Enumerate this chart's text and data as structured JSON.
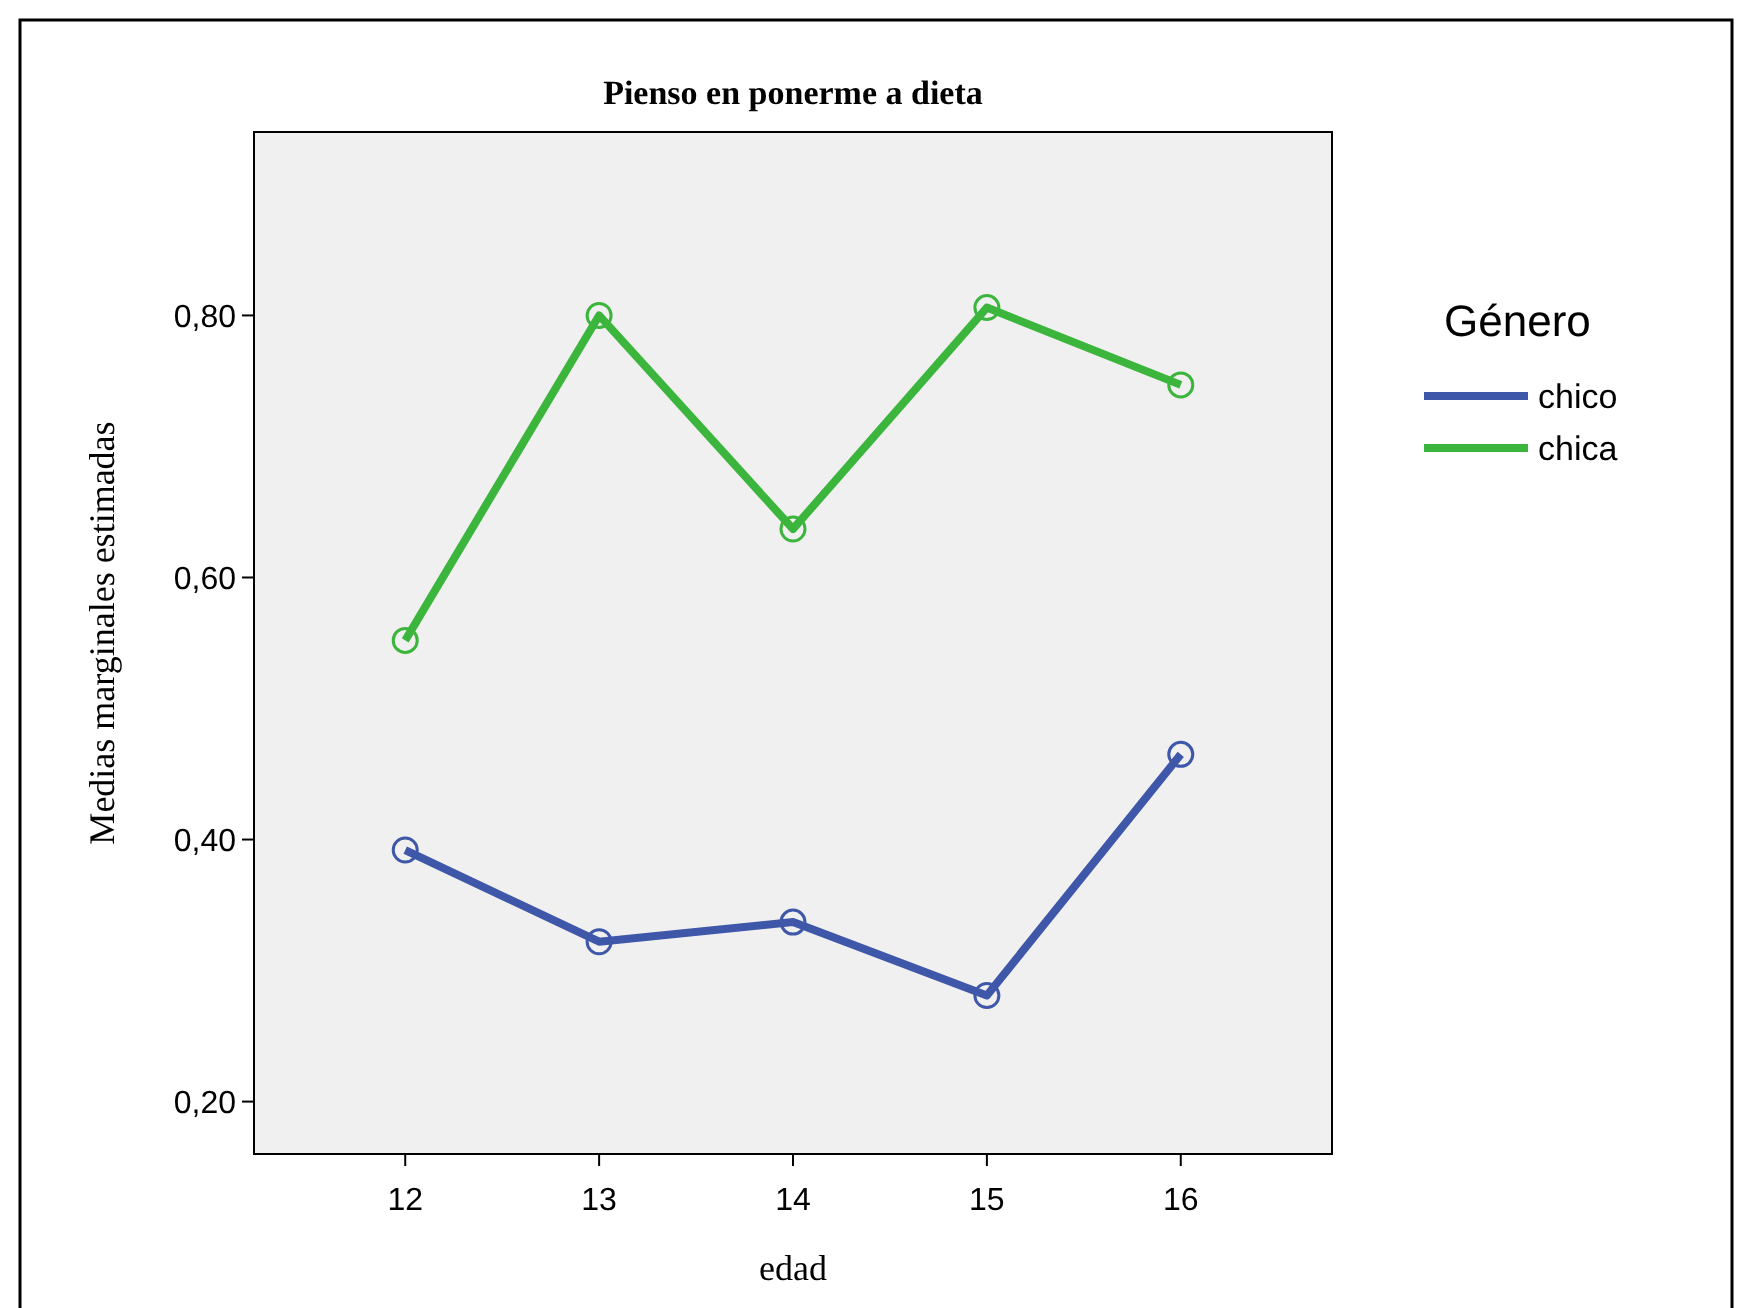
{
  "chart_data": {
    "type": "line",
    "title": "Pienso en ponerme a dieta",
    "xlabel": "edad",
    "ylabel": "Medias marginales estimadas",
    "legend_title": "Género",
    "categories": [
      "12",
      "13",
      "14",
      "15",
      "16"
    ],
    "series": [
      {
        "name": "chico",
        "color": "#3f57a8",
        "values": [
          0.392,
          0.322,
          0.337,
          0.281,
          0.465
        ]
      },
      {
        "name": "chica",
        "color": "#3cb53c",
        "values": [
          0.552,
          0.8,
          0.637,
          0.806,
          0.747
        ]
      }
    ],
    "ylim": [
      0.16,
      0.94
    ],
    "yticks": [
      {
        "value": 0.2,
        "label": "0,20"
      },
      {
        "value": 0.4,
        "label": "0,40"
      },
      {
        "value": 0.6,
        "label": "0,60"
      },
      {
        "value": 0.8,
        "label": "0,80"
      }
    ],
    "marker": "circle",
    "legend": "right",
    "grid": false
  }
}
